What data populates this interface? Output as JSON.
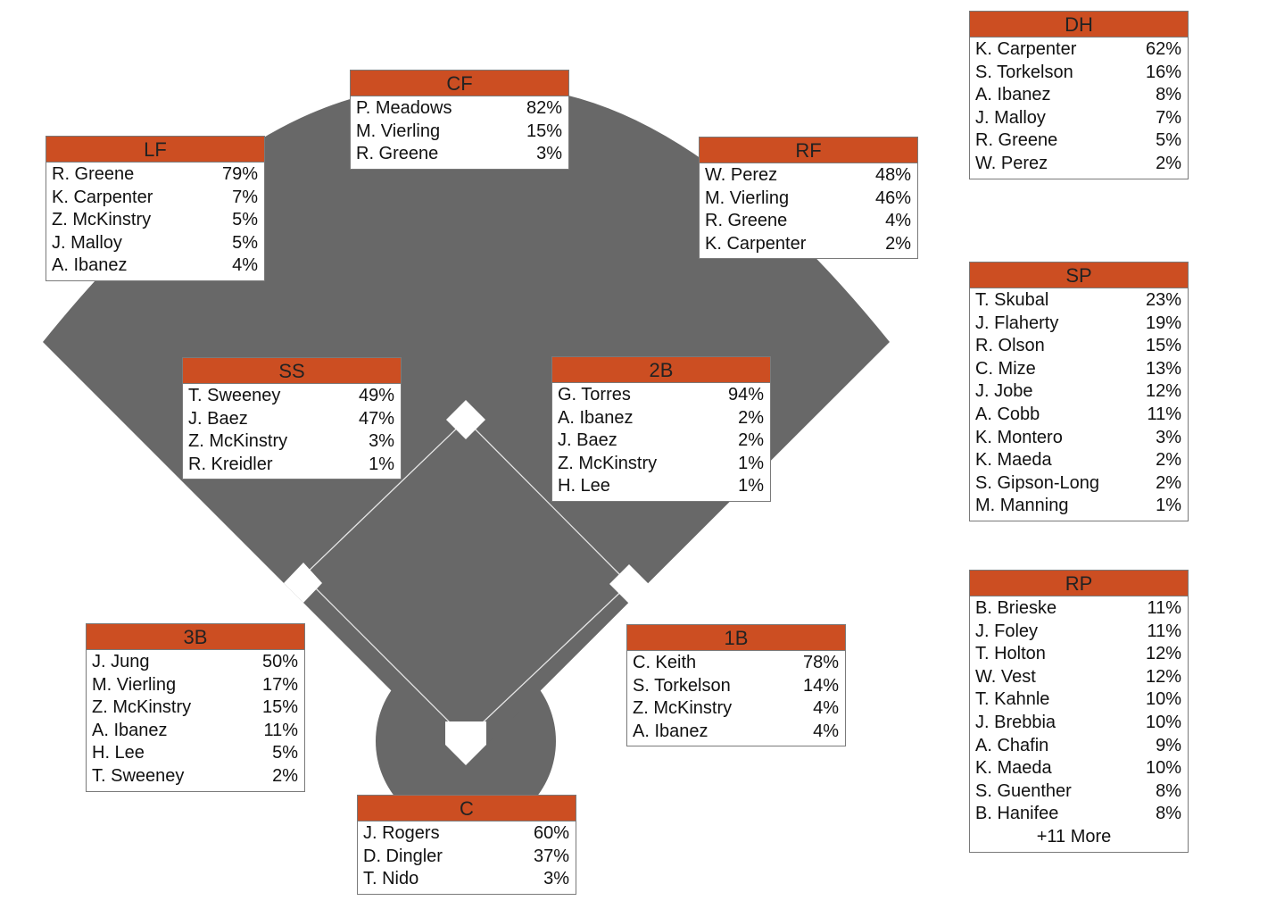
{
  "colors": {
    "header": "#cc4e22",
    "field": "#686868",
    "base": "#ffffff"
  },
  "positions": {
    "cf": {
      "label": "CF",
      "players": [
        {
          "name": "P. Meadows",
          "pct": "82%"
        },
        {
          "name": "M. Vierling",
          "pct": "15%"
        },
        {
          "name": "R. Greene",
          "pct": "3%"
        }
      ]
    },
    "lf": {
      "label": "LF",
      "players": [
        {
          "name": "R. Greene",
          "pct": "79%"
        },
        {
          "name": "K. Carpenter",
          "pct": "7%"
        },
        {
          "name": "Z. McKinstry",
          "pct": "5%"
        },
        {
          "name": "J. Malloy",
          "pct": "5%"
        },
        {
          "name": "A. Ibanez",
          "pct": "4%"
        }
      ]
    },
    "rf": {
      "label": "RF",
      "players": [
        {
          "name": "W. Perez",
          "pct": "48%"
        },
        {
          "name": "M. Vierling",
          "pct": "46%"
        },
        {
          "name": "R. Greene",
          "pct": "4%"
        },
        {
          "name": "K. Carpenter",
          "pct": "2%"
        }
      ]
    },
    "dh": {
      "label": "DH",
      "players": [
        {
          "name": "K. Carpenter",
          "pct": "62%"
        },
        {
          "name": "S. Torkelson",
          "pct": "16%"
        },
        {
          "name": "A. Ibanez",
          "pct": "8%"
        },
        {
          "name": "J. Malloy",
          "pct": "7%"
        },
        {
          "name": "R. Greene",
          "pct": "5%"
        },
        {
          "name": "W. Perez",
          "pct": "2%"
        }
      ]
    },
    "ss": {
      "label": "SS",
      "players": [
        {
          "name": "T. Sweeney",
          "pct": "49%"
        },
        {
          "name": "J. Baez",
          "pct": "47%"
        },
        {
          "name": "Z. McKinstry",
          "pct": "3%"
        },
        {
          "name": "R. Kreidler",
          "pct": "1%"
        }
      ]
    },
    "2b": {
      "label": "2B",
      "players": [
        {
          "name": "G. Torres",
          "pct": "94%"
        },
        {
          "name": "A. Ibanez",
          "pct": "2%"
        },
        {
          "name": "J. Baez",
          "pct": "2%"
        },
        {
          "name": "Z. McKinstry",
          "pct": "1%"
        },
        {
          "name": "H. Lee",
          "pct": "1%"
        }
      ]
    },
    "sp": {
      "label": "SP",
      "players": [
        {
          "name": "T. Skubal",
          "pct": "23%"
        },
        {
          "name": "J. Flaherty",
          "pct": "19%"
        },
        {
          "name": "R. Olson",
          "pct": "15%"
        },
        {
          "name": "C. Mize",
          "pct": "13%"
        },
        {
          "name": "J. Jobe",
          "pct": "12%"
        },
        {
          "name": "A. Cobb",
          "pct": "11%"
        },
        {
          "name": "K. Montero",
          "pct": "3%"
        },
        {
          "name": "K. Maeda",
          "pct": "2%"
        },
        {
          "name": "S. Gipson-Long",
          "pct": "2%"
        },
        {
          "name": "M. Manning",
          "pct": "1%"
        }
      ]
    },
    "3b": {
      "label": "3B",
      "players": [
        {
          "name": "J. Jung",
          "pct": "50%"
        },
        {
          "name": "M. Vierling",
          "pct": "17%"
        },
        {
          "name": "Z. McKinstry",
          "pct": "15%"
        },
        {
          "name": "A. Ibanez",
          "pct": "11%"
        },
        {
          "name": "H. Lee",
          "pct": "5%"
        },
        {
          "name": "T. Sweeney",
          "pct": "2%"
        }
      ]
    },
    "1b": {
      "label": "1B",
      "players": [
        {
          "name": "C. Keith",
          "pct": "78%"
        },
        {
          "name": "S. Torkelson",
          "pct": "14%"
        },
        {
          "name": "Z. McKinstry",
          "pct": "4%"
        },
        {
          "name": "A. Ibanez",
          "pct": "4%"
        }
      ]
    },
    "rp": {
      "label": "RP",
      "players": [
        {
          "name": "B. Brieske",
          "pct": "11%"
        },
        {
          "name": "J. Foley",
          "pct": "11%"
        },
        {
          "name": "T. Holton",
          "pct": "12%"
        },
        {
          "name": "W. Vest",
          "pct": "12%"
        },
        {
          "name": "T. Kahnle",
          "pct": "10%"
        },
        {
          "name": "J. Brebbia",
          "pct": "10%"
        },
        {
          "name": "A. Chafin",
          "pct": "9%"
        },
        {
          "name": "K. Maeda",
          "pct": "10%"
        },
        {
          "name": "S. Guenther",
          "pct": "8%"
        },
        {
          "name": "B. Hanifee",
          "pct": "8%"
        }
      ],
      "more": "+11 More"
    },
    "c": {
      "label": "C",
      "players": [
        {
          "name": "J. Rogers",
          "pct": "60%"
        },
        {
          "name": "D. Dingler",
          "pct": "37%"
        },
        {
          "name": "T. Nido",
          "pct": "3%"
        }
      ]
    }
  }
}
